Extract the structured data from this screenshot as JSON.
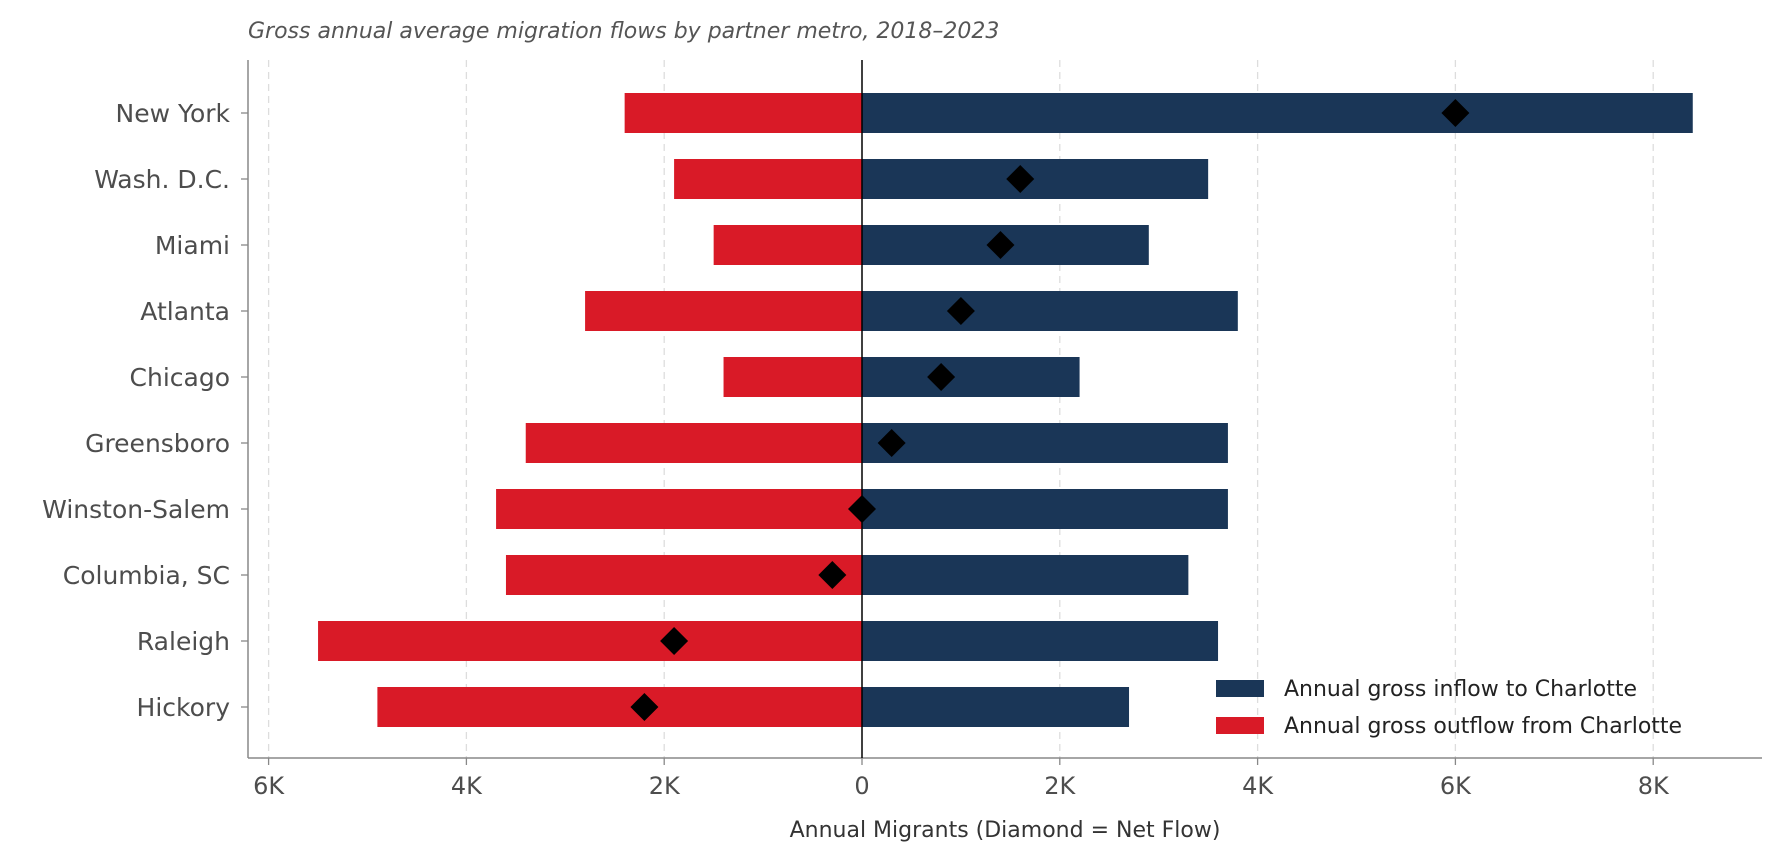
{
  "chart_data": {
    "type": "bar",
    "title": "Gross annual average migration flows by partner metro, 2018–2023",
    "xlabel": "Annual Migrants (Diamond = Net Flow)",
    "ylabel": "",
    "xlim": [
      -6200,
      9000
    ],
    "xticks": [
      {
        "value": -6000,
        "label": "6K"
      },
      {
        "value": -4000,
        "label": "4K"
      },
      {
        "value": -2000,
        "label": "2K"
      },
      {
        "value": 0,
        "label": "0"
      },
      {
        "value": 2000,
        "label": "2K"
      },
      {
        "value": 4000,
        "label": "4K"
      },
      {
        "value": 6000,
        "label": "6K"
      },
      {
        "value": 8000,
        "label": "8K"
      }
    ],
    "grid": "vertical-dashed",
    "legend_position": "bottom-right",
    "categories": [
      "New York",
      "Wash. D.C.",
      "Miami",
      "Atlanta",
      "Chicago",
      "Greensboro",
      "Winston-Salem",
      "Columbia, SC",
      "Raleigh",
      "Hickory"
    ],
    "series": [
      {
        "name": "Annual gross inflow to Charlotte",
        "color": "#1a3657",
        "values": [
          8400,
          3500,
          2900,
          3800,
          2200,
          3700,
          3700,
          3300,
          3600,
          2700
        ]
      },
      {
        "name": "Annual gross outflow from Charlotte",
        "color": "#d91a27",
        "values": [
          2400,
          1900,
          1500,
          2800,
          1400,
          3400,
          3700,
          3600,
          5500,
          4900
        ]
      }
    ],
    "net_flow": {
      "marker": "diamond",
      "color": "#000000",
      "values": [
        6000,
        1600,
        1400,
        1000,
        800,
        300,
        0,
        -300,
        -1900,
        -2200
      ]
    }
  }
}
